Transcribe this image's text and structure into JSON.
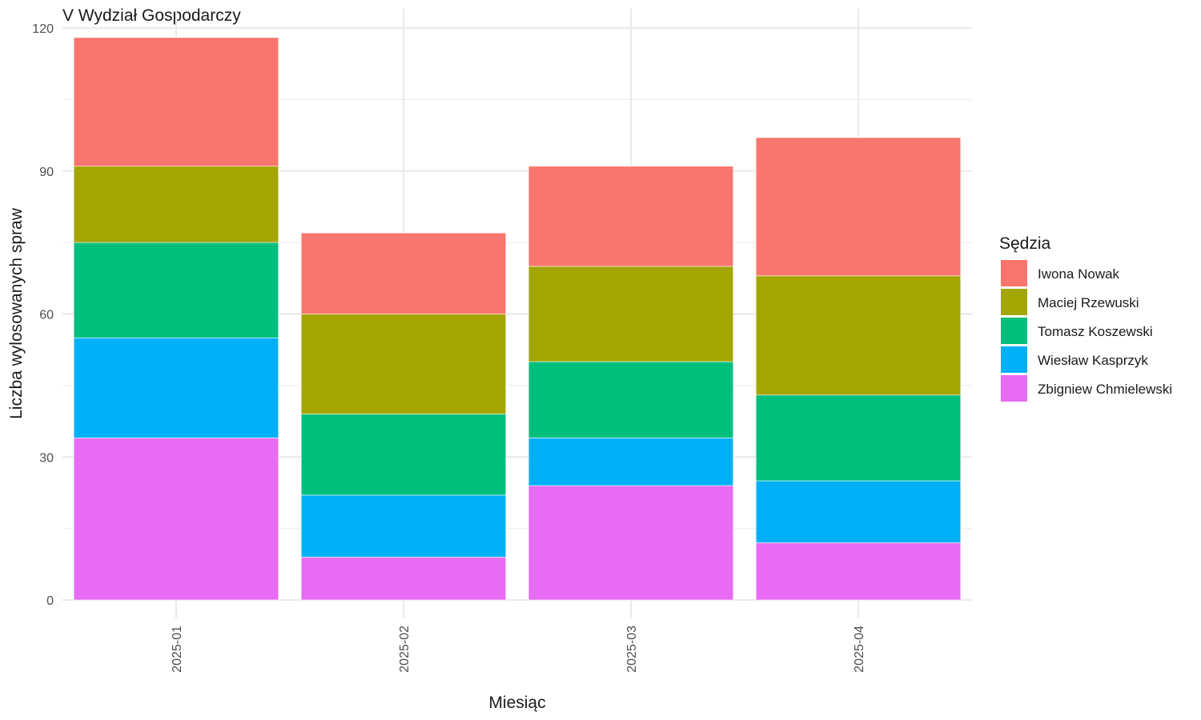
{
  "chart_data": {
    "type": "bar",
    "stacked": true,
    "title": "V Wydział Gospodarczy",
    "xlabel": "Miesiąc",
    "ylabel": "Liczba wylosowanych spraw",
    "ylim": [
      0,
      120
    ],
    "yticks": [
      0,
      30,
      60,
      90,
      120
    ],
    "grid": true,
    "x_tick_rotation": "vertical",
    "legend": {
      "title": "Sędzia",
      "position": "right"
    },
    "categories": [
      "2025-01",
      "2025-02",
      "2025-03",
      "2025-04"
    ],
    "series": [
      {
        "name": "Iwona Nowak",
        "color": "#F8766D",
        "values": [
          27,
          17,
          21,
          29
        ]
      },
      {
        "name": "Maciej Rzewuski",
        "color": "#A3A500",
        "values": [
          16,
          21,
          20,
          25
        ]
      },
      {
        "name": "Tomasz Koszewski",
        "color": "#00BF7D",
        "values": [
          20,
          17,
          16,
          18
        ]
      },
      {
        "name": "Wiesław Kasprzyk",
        "color": "#00B0F6",
        "values": [
          21,
          13,
          10,
          13
        ]
      },
      {
        "name": "Zbigniew Chmielewski",
        "color": "#E76BF3",
        "values": [
          34,
          9,
          24,
          12
        ]
      }
    ]
  }
}
